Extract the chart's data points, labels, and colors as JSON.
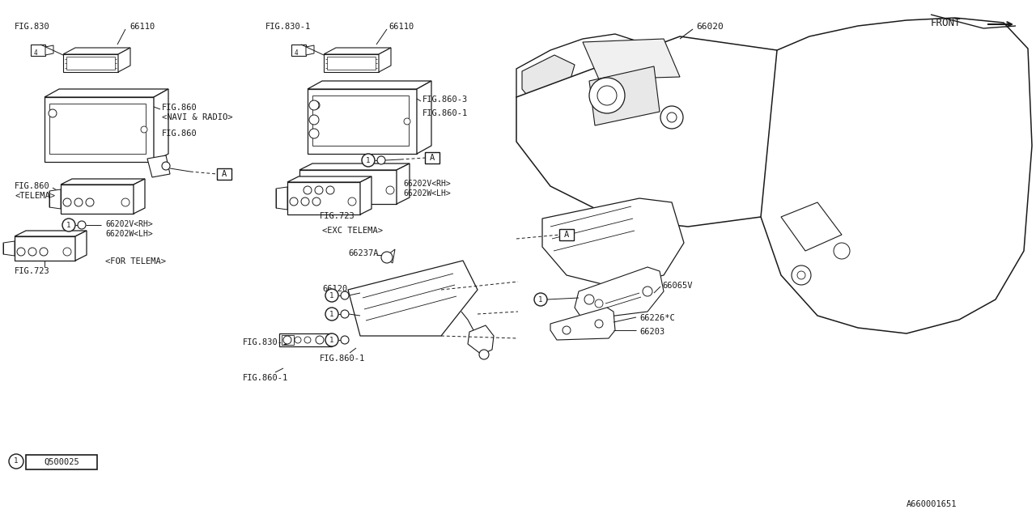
{
  "bg": "#ffffff",
  "lc": "#1a1a1a",
  "fig_id": "A660001651",
  "q_ref": "Q500025",
  "labels": {
    "fig830": "FIG.830",
    "fig830_1a": "FIG.830-1",
    "fig830_1b": "FIG.830-1",
    "fig860_navi": "FIG.860",
    "fig860_navi_sub": "<NAVI & RADIO>",
    "fig860": "FIG.860",
    "fig860_telema": "FIG.860",
    "fig860_telema_sub": "<TELEMA>",
    "fig860_3": "FIG.860-3",
    "fig860_1a": "FIG.860-1",
    "fig860_1b": "FIG.860-1",
    "fig860_1c": "FIG.860-1",
    "fig723a": "FIG.723",
    "fig723b": "FIG.723",
    "p66110a": "66110",
    "p66110b": "66110",
    "p66020": "66020",
    "p66120": "66120",
    "p66237a": "66237A",
    "p66065v": "66065V",
    "p66226c": "66226*C",
    "p66203": "66203",
    "p66202v_rh_a": "66202V<RH>",
    "p66202w_lh_a": "66202W<LH>",
    "p66202v_rh_b": "66202V<RH>",
    "p66202w_lh_b": "66202W<LH>",
    "for_telema": "<FOR TELEMA>",
    "exc_telema": "<EXC TELEMA>",
    "front": "FRONT"
  }
}
